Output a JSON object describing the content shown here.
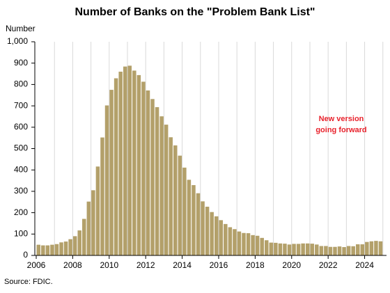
{
  "chart_data": {
    "type": "bar",
    "title": "Number of Banks on the \"Problem Bank List\"",
    "y_axis_label": "Number",
    "source": "Source: FDIC.",
    "annotation": [
      "New version",
      "going forward"
    ],
    "annotation_color": "#e8212b",
    "color": "#b3a06a",
    "x": [
      2006,
      2006.25,
      2006.5,
      2006.75,
      2007,
      2007.25,
      2007.5,
      2007.75,
      2008,
      2008.25,
      2008.5,
      2008.75,
      2009,
      2009.25,
      2009.5,
      2009.75,
      2010,
      2010.25,
      2010.5,
      2010.75,
      2011,
      2011.25,
      2011.5,
      2011.75,
      2012,
      2012.25,
      2012.5,
      2012.75,
      2013,
      2013.25,
      2013.5,
      2013.75,
      2014,
      2014.25,
      2014.5,
      2014.75,
      2015,
      2015.25,
      2015.5,
      2015.75,
      2016,
      2016.25,
      2016.5,
      2016.75,
      2017,
      2017.25,
      2017.5,
      2017.75,
      2018,
      2018.25,
      2018.5,
      2018.75,
      2019,
      2019.25,
      2019.5,
      2019.75,
      2020,
      2020.25,
      2020.5,
      2020.75,
      2021,
      2021.25,
      2021.5,
      2021.75,
      2022,
      2022.25,
      2022.5,
      2022.75,
      2023,
      2023.25,
      2023.5,
      2023.75,
      2024,
      2024.25,
      2024.5,
      2024.75
    ],
    "values": [
      50,
      47,
      47,
      50,
      53,
      61,
      65,
      76,
      90,
      117,
      171,
      252,
      305,
      416,
      552,
      702,
      775,
      829,
      860,
      884,
      888,
      865,
      844,
      813,
      772,
      732,
      694,
      651,
      612,
      553,
      515,
      467,
      411,
      354,
      329,
      291,
      253,
      228,
      203,
      183,
      165,
      147,
      132,
      123,
      112,
      105,
      104,
      95,
      92,
      82,
      71,
      60,
      59,
      56,
      55,
      51,
      54,
      54,
      56,
      56,
      55,
      51,
      44,
      44,
      40,
      40,
      42,
      39,
      44,
      43,
      52,
      52,
      63,
      66,
      68,
      66
    ],
    "xlim": [
      2006,
      2025.2
    ],
    "xticks": [
      2006,
      2008,
      2010,
      2012,
      2014,
      2016,
      2018,
      2020,
      2022,
      2024
    ],
    "xgrid": [
      2007,
      2008,
      2009,
      2010,
      2011,
      2012,
      2013,
      2014,
      2015,
      2016,
      2017,
      2018,
      2019,
      2020,
      2021,
      2022,
      2023,
      2024,
      2025
    ],
    "ylim": [
      0,
      1000
    ],
    "yticks": [
      0,
      100,
      200,
      300,
      400,
      500,
      600,
      700,
      800,
      900,
      {
        "value": 1000,
        "label": "1,000"
      }
    ]
  }
}
